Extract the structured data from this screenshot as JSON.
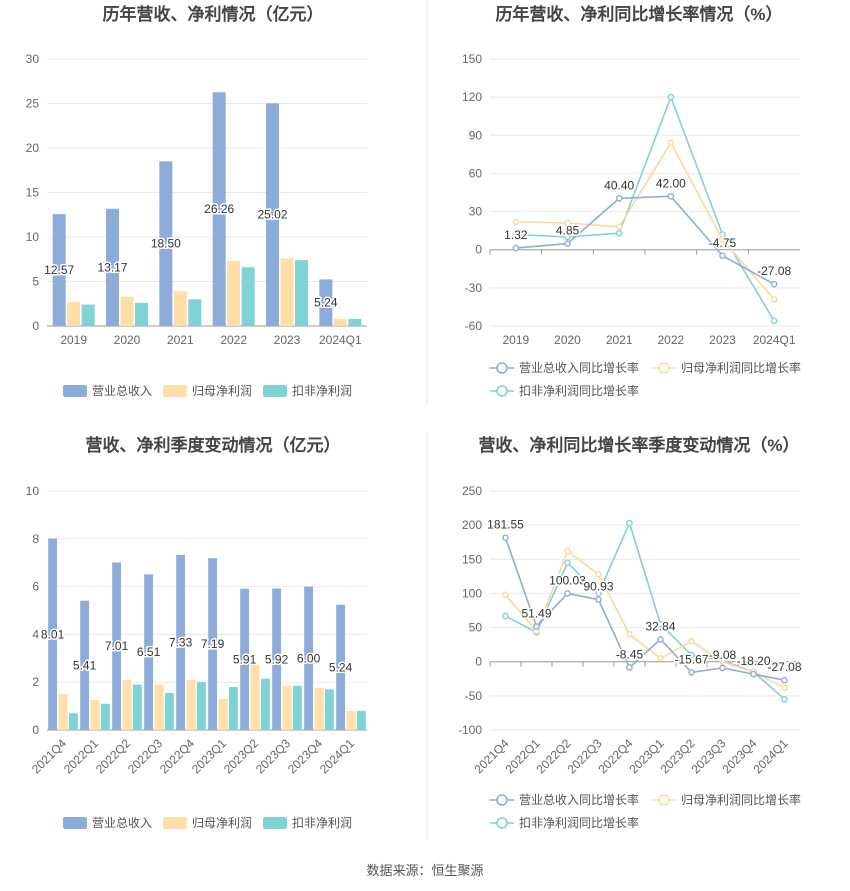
{
  "footer": {
    "source": "数据来源：恒生聚源"
  },
  "colors": {
    "revenue": "#8eacda",
    "netprofit": "#fddfa7",
    "deducted": "#7fd3d5",
    "grid": "#e8e8e8",
    "axis": "#999999",
    "text": "#666666"
  },
  "chart_data": [
    {
      "type": "bar",
      "title": "历年营收、净利情况（亿元）",
      "categories": [
        "2019",
        "2020",
        "2021",
        "2022",
        "2023",
        "2024Q1"
      ],
      "ylim": [
        0,
        30
      ],
      "yticks": [
        0,
        5,
        10,
        15,
        20,
        25,
        30
      ],
      "yticklabels": [
        "0",
        "5",
        "10",
        "15",
        "20",
        "25",
        "30"
      ],
      "series": [
        {
          "name": "营业总收入",
          "values": [
            12.57,
            13.17,
            18.5,
            26.26,
            25.02,
            5.24
          ],
          "labels": [
            "12.57",
            "13.17",
            "18.50",
            "26.26",
            "25.02",
            "5.24"
          ]
        },
        {
          "name": "归母净利润",
          "values": [
            2.7,
            3.3,
            3.9,
            7.3,
            7.6,
            0.8
          ]
        },
        {
          "name": "扣非净利润",
          "values": [
            2.4,
            2.6,
            3.0,
            6.6,
            7.4,
            0.8
          ]
        }
      ],
      "legend": "bottom"
    },
    {
      "type": "line",
      "title": "历年营收、净利同比增长率情况（%）",
      "categories": [
        "2019",
        "2020",
        "2021",
        "2022",
        "2023",
        "2024Q1"
      ],
      "ylim": [
        -60,
        150
      ],
      "yticks": [
        -60,
        -30,
        0,
        30,
        60,
        90,
        120,
        150
      ],
      "yticklabels": [
        "-60",
        "-30",
        "0",
        "30",
        "60",
        "90",
        "120",
        "150"
      ],
      "series": [
        {
          "name": "营业总收入同比增长率",
          "values": [
            1.32,
            4.85,
            40.4,
            42.0,
            -4.75,
            -27.08
          ],
          "labels": [
            "1.32",
            "4.85",
            "40.40",
            "42.00",
            "-4.75",
            "-27.08"
          ]
        },
        {
          "name": "归母净利润同比增长率",
          "values": [
            22,
            21,
            18,
            84,
            8,
            -39
          ]
        },
        {
          "name": "扣非净利润同比增长率",
          "values": [
            12,
            10,
            13,
            120,
            12,
            -56
          ]
        }
      ],
      "legend": "bottom"
    },
    {
      "type": "bar",
      "title": "营收、净利季度变动情况（亿元）",
      "categories": [
        "2021Q4",
        "2022Q1",
        "2022Q2",
        "2022Q3",
        "2022Q4",
        "2023Q1",
        "2023Q2",
        "2023Q3",
        "2023Q4",
        "2024Q1"
      ],
      "ylim": [
        0,
        10
      ],
      "yticks": [
        0,
        2,
        4,
        6,
        8,
        10
      ],
      "yticklabels": [
        "0",
        "2",
        "4",
        "6",
        "8",
        "10"
      ],
      "series": [
        {
          "name": "营业总收入",
          "values": [
            8.01,
            5.41,
            7.01,
            6.51,
            7.33,
            7.19,
            5.91,
            5.92,
            6.0,
            5.24
          ],
          "labels": [
            "8.01",
            "5.41",
            "7.01",
            "6.51",
            "7.33",
            "7.19",
            "5.91",
            "5.92",
            "6.00",
            "5.24"
          ]
        },
        {
          "name": "归母净利润",
          "values": [
            1.5,
            1.25,
            2.1,
            1.9,
            2.1,
            1.3,
            2.75,
            1.85,
            1.75,
            0.8
          ]
        },
        {
          "name": "扣非净利润",
          "values": [
            0.7,
            1.1,
            1.9,
            1.55,
            2.0,
            1.8,
            2.15,
            1.85,
            1.7,
            0.8
          ]
        }
      ],
      "legend": "bottom"
    },
    {
      "type": "line",
      "title": "营收、净利同比增长率季度变动情况（%）",
      "categories": [
        "2021Q4",
        "2022Q1",
        "2022Q2",
        "2022Q3",
        "2022Q4",
        "2023Q1",
        "2023Q2",
        "2023Q3",
        "2023Q4",
        "2024Q1"
      ],
      "ylim": [
        -100,
        250
      ],
      "yticks": [
        -100,
        -50,
        0,
        50,
        100,
        150,
        200,
        250
      ],
      "yticklabels": [
        "-100",
        "-50",
        "0",
        "50",
        "100",
        "150",
        "200",
        "250"
      ],
      "series": [
        {
          "name": "营业总收入同比增长率",
          "values": [
            181.55,
            51.49,
            100.03,
            90.93,
            -8.45,
            32.84,
            -15.67,
            -9.08,
            -18.2,
            -27.08
          ],
          "labels": [
            "181.55",
            "51.49",
            "100.03",
            "90.93",
            "-8.45",
            "32.84",
            "-15.67",
            "-9.08",
            "-18.20",
            "-27.08"
          ]
        },
        {
          "name": "归母净利润同比增长率",
          "values": [
            98,
            45,
            162,
            128,
            40,
            5,
            30,
            0,
            -15,
            -38
          ]
        },
        {
          "name": "扣非净利润同比增长率",
          "values": [
            67,
            43,
            145,
            100,
            203,
            55,
            10,
            2,
            -15,
            -55
          ]
        }
      ],
      "legend": "bottom"
    }
  ]
}
